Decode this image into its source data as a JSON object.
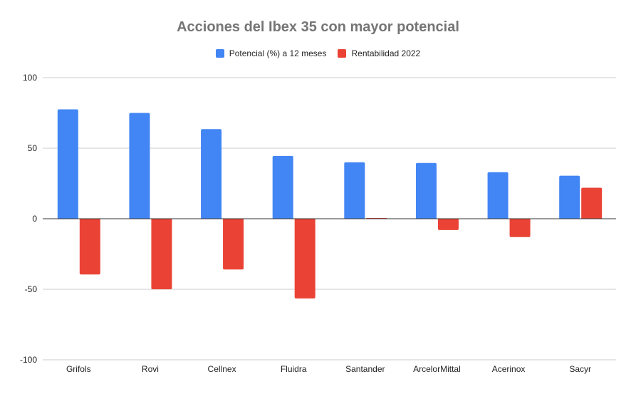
{
  "chart_data": {
    "type": "bar",
    "title": "Acciones del Ibex 35 con mayor potencial",
    "categories": [
      "Grifols",
      "Rovi",
      "Cellnex",
      "Fluidra",
      "Santander",
      "ArcelorMittal",
      "Acerinox",
      "Sacyr"
    ],
    "series": [
      {
        "name": "Potencial (%) a 12 meses",
        "color": "#4285f4",
        "values": [
          77.5,
          75,
          63.5,
          44.5,
          40,
          39.5,
          33,
          30.5
        ]
      },
      {
        "name": "Rentabilidad 2022",
        "color": "#ea4335",
        "values": [
          -39.5,
          -50,
          -36,
          -56.5,
          0.5,
          -8,
          -13,
          22
        ]
      }
    ],
    "ylim": [
      -100,
      100
    ],
    "yticks": [
      100,
      50,
      0,
      -50,
      -100
    ],
    "grid": true,
    "legend_position": "top",
    "xlabel": "",
    "ylabel": ""
  }
}
